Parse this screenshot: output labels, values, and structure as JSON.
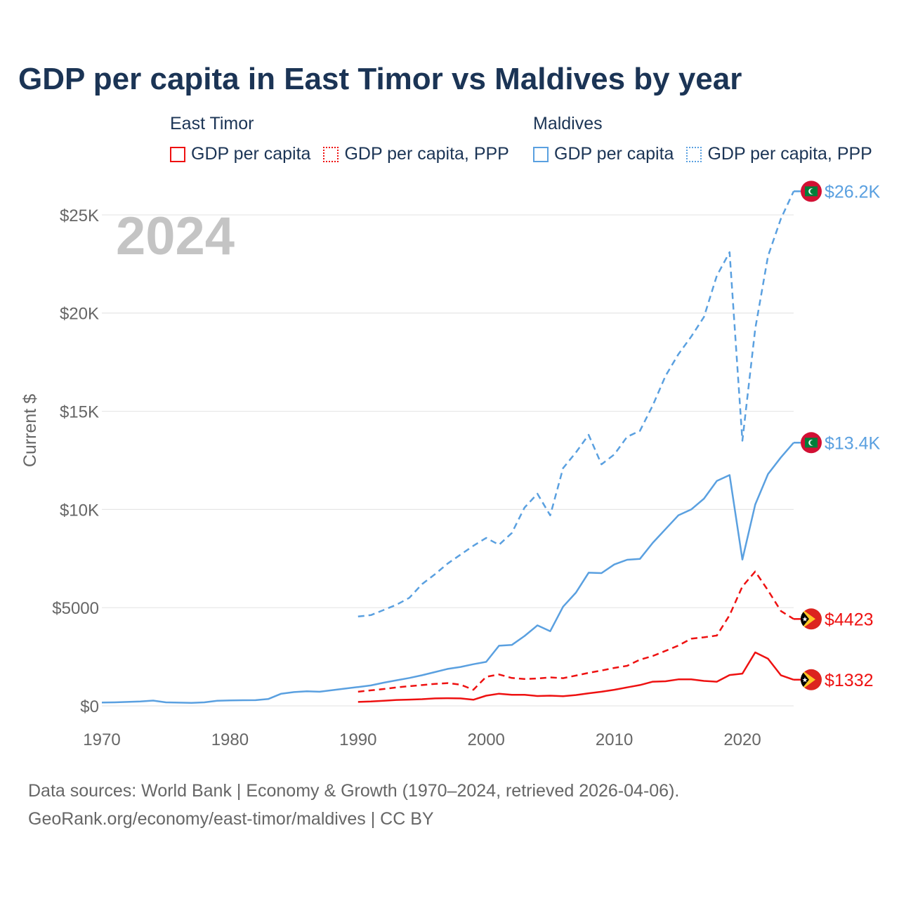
{
  "title": "GDP per capita in East Timor vs Maldives by year",
  "legend": {
    "groups": [
      {
        "heading": "East Timor",
        "items": [
          {
            "label": "GDP per capita"
          },
          {
            "label": "GDP per capita, PPP"
          }
        ]
      },
      {
        "heading": "Maldives",
        "items": [
          {
            "label": "GDP per capita"
          },
          {
            "label": "GDP per capita, PPP"
          }
        ]
      }
    ]
  },
  "colors": {
    "east_timor": "#ee1111",
    "maldives": "#5aa0e0",
    "grid": "#e6e6e6",
    "axis_text": "#666666",
    "year_watermark": "#c4c4c4"
  },
  "year_label": "2024",
  "footer": {
    "line1": "Data sources: World Bank | Economy & Growth (1970–2024, retrieved 2026-04-06).",
    "line2": "GeoRank.org/economy/east-timor/maldives | CC BY"
  },
  "chart_data": {
    "type": "line",
    "title": "GDP per capita in East Timor vs Maldives by year",
    "xlabel": "",
    "ylabel": "Current $",
    "xlim": [
      1970,
      2024
    ],
    "ylim": [
      0,
      27000
    ],
    "x_ticks": [
      1970,
      1980,
      1990,
      2000,
      2010,
      2020
    ],
    "x_tick_labels": [
      "1970",
      "1980",
      "1990",
      "2000",
      "2010",
      "2020"
    ],
    "y_ticks": [
      0,
      5000,
      10000,
      15000,
      20000,
      25000
    ],
    "y_tick_labels": [
      "$0",
      "$5000",
      "$10K",
      "$15K",
      "$20K",
      "$25K"
    ],
    "grid": true,
    "series": [
      {
        "name": "Maldives GDP per capita, PPP",
        "country": "maldives",
        "dash": true,
        "end_label": "$26.2K",
        "x": [
          1990,
          1991,
          1992,
          1993,
          1994,
          1995,
          1996,
          1997,
          1998,
          1999,
          2000,
          2001,
          2002,
          2003,
          2004,
          2005,
          2006,
          2007,
          2008,
          2009,
          2010,
          2011,
          2012,
          2013,
          2014,
          2015,
          2016,
          2017,
          2018,
          2019,
          2020,
          2021,
          2022,
          2023,
          2024
        ],
        "values": [
          4550,
          4620,
          4880,
          5150,
          5500,
          6200,
          6700,
          7250,
          7700,
          8150,
          8550,
          8200,
          8800,
          10100,
          10800,
          9700,
          12100,
          12900,
          13800,
          12300,
          12800,
          13700,
          14000,
          15300,
          16800,
          17900,
          18800,
          19800,
          21900,
          23100,
          13500,
          19200,
          22900,
          24800,
          26200
        ]
      },
      {
        "name": "Maldives GDP per capita",
        "country": "maldives",
        "dash": false,
        "end_label": "$13.4K",
        "x": [
          1970,
          1971,
          1972,
          1973,
          1974,
          1975,
          1976,
          1977,
          1978,
          1979,
          1980,
          1981,
          1982,
          1983,
          1984,
          1985,
          1986,
          1987,
          1988,
          1989,
          1990,
          1991,
          1992,
          1993,
          1994,
          1995,
          1996,
          1997,
          1998,
          1999,
          2000,
          2001,
          2002,
          2003,
          2004,
          2005,
          2006,
          2007,
          2008,
          2009,
          2010,
          2011,
          2012,
          2013,
          2014,
          2015,
          2016,
          2017,
          2018,
          2019,
          2020,
          2021,
          2022,
          2023,
          2024
        ],
        "values": [
          170,
          180,
          200,
          225,
          270,
          180,
          165,
          155,
          180,
          260,
          280,
          285,
          290,
          350,
          620,
          700,
          740,
          720,
          800,
          880,
          960,
          1040,
          1180,
          1300,
          1420,
          1560,
          1720,
          1880,
          1980,
          2120,
          2240,
          3060,
          3100,
          3560,
          4100,
          3800,
          5050,
          5760,
          6780,
          6760,
          7200,
          7440,
          7480,
          8300,
          9000,
          9700,
          10000,
          10550,
          11450,
          11750,
          7450,
          10250,
          11800,
          12650,
          13400
        ]
      },
      {
        "name": "East Timor GDP per capita, PPP",
        "country": "east_timor",
        "dash": true,
        "end_label": "$4423",
        "x": [
          1990,
          1991,
          1992,
          1993,
          1994,
          1995,
          1996,
          1997,
          1998,
          1999,
          2000,
          2001,
          2002,
          2003,
          2004,
          2005,
          2006,
          2007,
          2008,
          2009,
          2010,
          2011,
          2012,
          2013,
          2014,
          2015,
          2016,
          2017,
          2018,
          2019,
          2020,
          2021,
          2022,
          2023,
          2024
        ],
        "values": [
          720,
          790,
          860,
          940,
          1000,
          1060,
          1120,
          1160,
          1080,
          820,
          1480,
          1600,
          1420,
          1370,
          1390,
          1450,
          1410,
          1540,
          1680,
          1800,
          1930,
          2040,
          2350,
          2540,
          2800,
          3070,
          3420,
          3490,
          3580,
          4620,
          6080,
          6840,
          5880,
          4830,
          4423
        ]
      },
      {
        "name": "East Timor GDP per capita",
        "country": "east_timor",
        "dash": false,
        "end_label": "$1332",
        "x": [
          1990,
          1991,
          1992,
          1993,
          1994,
          1995,
          1996,
          1997,
          1998,
          1999,
          2000,
          2001,
          2002,
          2003,
          2004,
          2005,
          2006,
          2007,
          2008,
          2009,
          2010,
          2011,
          2012,
          2013,
          2014,
          2015,
          2016,
          2017,
          2018,
          2019,
          2020,
          2021,
          2022,
          2023,
          2024
        ],
        "values": [
          200,
          220,
          260,
          300,
          320,
          340,
          380,
          390,
          380,
          310,
          520,
          620,
          560,
          560,
          500,
          520,
          490,
          550,
          640,
          720,
          820,
          940,
          1060,
          1230,
          1250,
          1350,
          1350,
          1270,
          1230,
          1570,
          1640,
          2720,
          2400,
          1560,
          1332
        ]
      }
    ]
  }
}
